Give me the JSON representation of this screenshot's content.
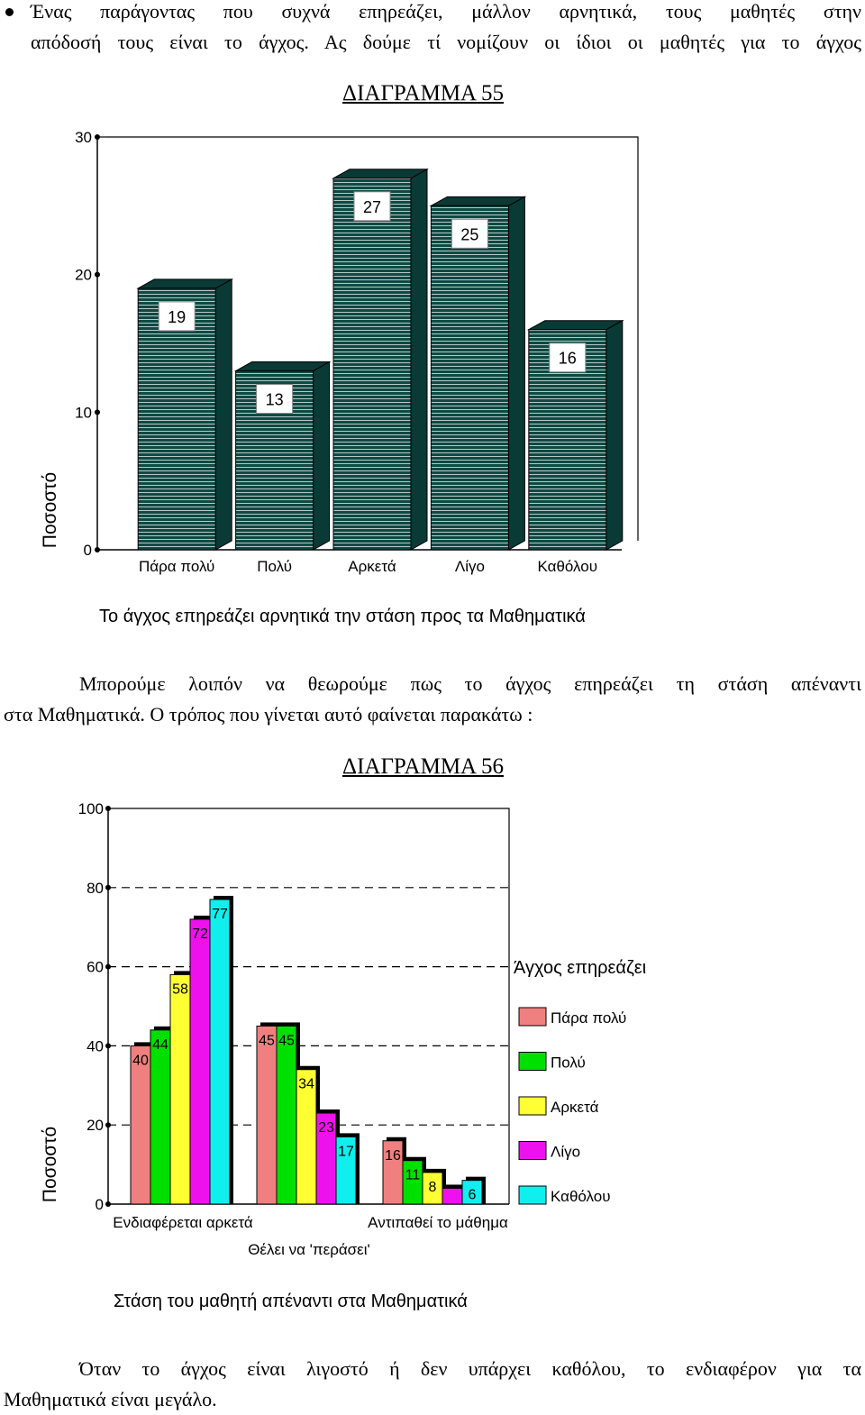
{
  "intro": {
    "line1": "Ένας παράγοντας που συχνά επηρεάζει, μάλλον αρνητικά, τους μαθητές στην",
    "line2": "απόδοσή τους είναι το άγχος. Ας δούμε τί νομίζουν οι ίδιοι οι μαθητές για το άγχος"
  },
  "middle": {
    "line1": "Μπορούμε λοιπόν να θεωρούμε πως το άγχος επηρεάζει τη στάση απέναντι",
    "line2": "στα Μαθηματικά. Ο τρόπος που γίνεται αυτό φαίνεται παρακάτω :"
  },
  "closing": {
    "line1": "Όταν το άγχος είναι λιγοστό ή δεν υπάρχει καθόλου, το ενδιαφέρον για τα",
    "line2": "Μαθηματικά είναι μεγάλο."
  },
  "chart_data": [
    {
      "type": "bar",
      "title": "ΔΙΑΓΡΑΜΜΑ 55",
      "xlabel": "Το άγχος επηρεάζει αρνητικά την στάση προς τα Μαθηματικά",
      "ylabel": "Ποσοστό",
      "categories": [
        "Πάρα πολύ",
        "Πολύ",
        "Αρκετά",
        "Λίγο",
        "Καθόλου"
      ],
      "values": [
        19,
        13,
        27,
        25,
        16
      ],
      "value_labels": [
        "19",
        "13",
        "27",
        "25",
        "16"
      ],
      "ylim": [
        0,
        30
      ],
      "yticks": [
        "0",
        "10",
        "20",
        "30"
      ],
      "grid": false,
      "bar_color": "#0e4a44",
      "style": "3d"
    },
    {
      "type": "bar",
      "title": "ΔΙΑΓΡΑΜΜΑ 56",
      "xlabel": "Στάση του μαθητή απέναντι στα Μαθηματικά",
      "ylabel": "Ποσοστό",
      "categories": [
        "Ενδιαφέρεται αρκετά",
        "Θέλει να 'περάσει'",
        "Αντιπαθεί το μάθημα"
      ],
      "legend_title": "Άγχος επηρεάζει",
      "legend_position": "right",
      "series": [
        {
          "name": "Πάρα πολύ",
          "color": "#f08080",
          "values": [
            40,
            45,
            16
          ],
          "labels": [
            "40",
            "45",
            "16"
          ]
        },
        {
          "name": "Πολύ",
          "color": "#00e000",
          "values": [
            44,
            45,
            11
          ],
          "labels": [
            "44",
            "45",
            "11"
          ]
        },
        {
          "name": "Αρκετά",
          "color": "#ffff33",
          "values": [
            58,
            34,
            8
          ],
          "labels": [
            "58",
            "34",
            "8"
          ]
        },
        {
          "name": "Λίγο",
          "color": "#ee11ee",
          "values": [
            72,
            23,
            4
          ],
          "labels": [
            "72",
            "23",
            ""
          ]
        },
        {
          "name": "Καθόλου",
          "color": "#11eeee",
          "values": [
            77,
            17,
            6
          ],
          "labels": [
            "77",
            "17",
            "6"
          ]
        }
      ],
      "ylim": [
        0,
        100
      ],
      "yticks": [
        "0",
        "20",
        "40",
        "60",
        "80",
        "100"
      ],
      "grid": "dashed"
    }
  ]
}
